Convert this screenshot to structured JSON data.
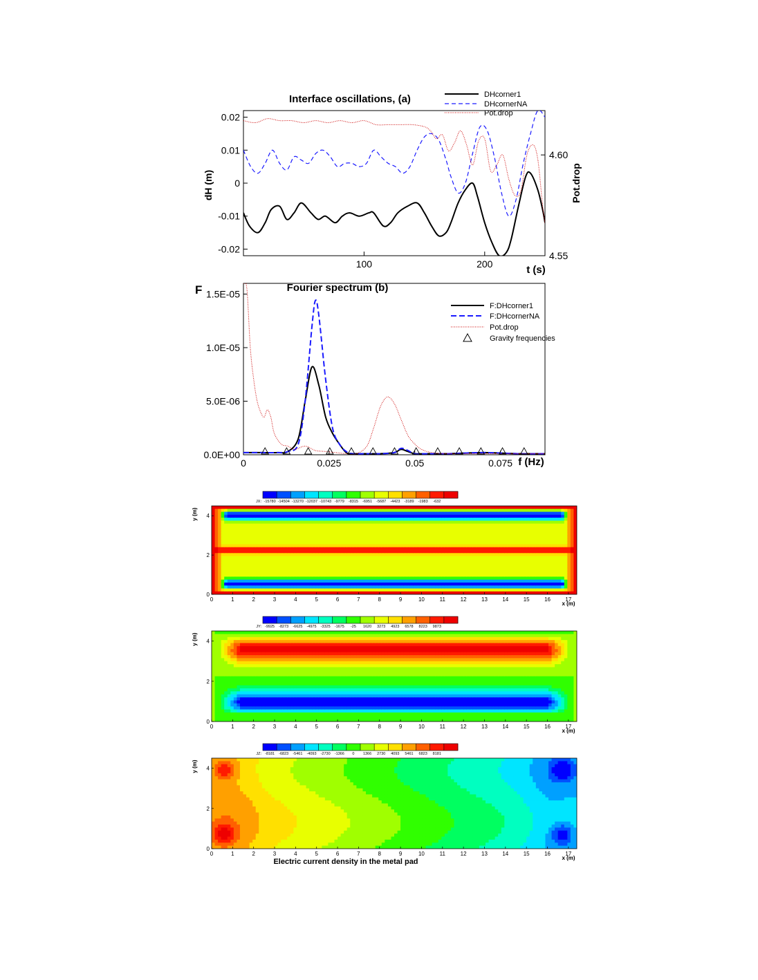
{
  "chart_data": [
    {
      "type": "line",
      "title": "Interface oscillations,  (a)",
      "xlabel": "t (s)",
      "ylabel": "dH (m)",
      "y2label": "Pot.drop",
      "xlim": [
        0,
        250
      ],
      "ylim": [
        -0.022,
        0.022
      ],
      "y2lim": [
        4.55,
        4.622
      ],
      "xticks": [
        100,
        200
      ],
      "yticks": [
        0.02,
        0.01,
        0,
        -0.01,
        -0.02
      ],
      "yticklabels": [
        "0.02",
        "0.01",
        "0",
        "-0.01",
        "-0.02"
      ],
      "y2ticks": [
        4.6,
        4.55
      ],
      "y2ticklabels": [
        "4.60",
        "4.55"
      ],
      "legend_position": "top-right",
      "series": [
        {
          "name": "DHcorner1",
          "color": "#000000",
          "axis": "left",
          "x": [
            0,
            5,
            12,
            18,
            23,
            30,
            36,
            42,
            48,
            56,
            62,
            68,
            76,
            82,
            88,
            96,
            104,
            108,
            116,
            122,
            128,
            136,
            144,
            150,
            156,
            162,
            168,
            172,
            178,
            184,
            190,
            194,
            200,
            206,
            212,
            218,
            222,
            228,
            234,
            238,
            244,
            248,
            250
          ],
          "y": [
            -0.009,
            -0.013,
            -0.015,
            -0.012,
            -0.008,
            -0.007,
            -0.011,
            -0.009,
            -0.006,
            -0.009,
            -0.011,
            -0.01,
            -0.012,
            -0.01,
            -0.009,
            -0.01,
            -0.009,
            -0.009,
            -0.013,
            -0.012,
            -0.009,
            -0.007,
            -0.006,
            -0.009,
            -0.013,
            -0.016,
            -0.015,
            -0.012,
            -0.006,
            -0.002,
            0.0,
            -0.004,
            -0.012,
            -0.018,
            -0.022,
            -0.021,
            -0.017,
            -0.007,
            0.002,
            0.003,
            -0.002,
            -0.008,
            -0.012
          ]
        },
        {
          "name": "DHcornerNA",
          "color": "#1a1aff",
          "axis": "left",
          "x": [
            0,
            6,
            12,
            18,
            24,
            30,
            36,
            42,
            48,
            54,
            60,
            66,
            72,
            78,
            84,
            90,
            96,
            102,
            108,
            114,
            120,
            126,
            132,
            138,
            144,
            150,
            156,
            162,
            168,
            172,
            178,
            184,
            190,
            196,
            202,
            208,
            214,
            220,
            226,
            232,
            238,
            244,
            250
          ],
          "y": [
            0.01,
            0.005,
            0.003,
            0.006,
            0.01,
            0.006,
            0.004,
            0.008,
            0.007,
            0.006,
            0.009,
            0.01,
            0.008,
            0.005,
            0.006,
            0.006,
            0.005,
            0.006,
            0.01,
            0.008,
            0.006,
            0.005,
            0.003,
            0.005,
            0.01,
            0.014,
            0.015,
            0.013,
            0.007,
            0.002,
            -0.003,
            0.0,
            0.009,
            0.017,
            0.016,
            0.008,
            -0.003,
            -0.01,
            -0.005,
            0.006,
            0.015,
            0.022,
            0.02
          ]
        },
        {
          "name": "Pot.drop",
          "color": "#cc0000",
          "axis": "right",
          "x": [
            0,
            10,
            20,
            30,
            40,
            50,
            60,
            70,
            80,
            90,
            100,
            110,
            120,
            130,
            140,
            150,
            155,
            160,
            165,
            170,
            175,
            180,
            185,
            190,
            195,
            200,
            205,
            210,
            215,
            220,
            225,
            230,
            235,
            240,
            244,
            248,
            250
          ],
          "y": [
            4.617,
            4.616,
            4.618,
            4.617,
            4.617,
            4.616,
            4.617,
            4.616,
            4.617,
            4.616,
            4.617,
            4.615,
            4.615,
            4.615,
            4.615,
            4.614,
            4.612,
            4.608,
            4.61,
            4.602,
            4.606,
            4.612,
            4.605,
            4.595,
            4.607,
            4.608,
            4.592,
            4.595,
            4.6,
            4.588,
            4.58,
            4.582,
            4.6,
            4.605,
            4.598,
            4.575,
            4.566
          ]
        }
      ]
    },
    {
      "type": "line",
      "title": "Fourier spectrum (b)",
      "xlabel": "f (Hz)",
      "ylabel": "F",
      "xlim": [
        0,
        0.088
      ],
      "ylim": [
        0,
        1.6e-05
      ],
      "xticks": [
        0,
        0.025,
        0.05,
        0.075
      ],
      "xticklabels": [
        "0",
        "0.025",
        "0.05",
        "0.075"
      ],
      "yticks": [
        0,
        5e-06,
        1e-05,
        1.5e-05
      ],
      "yticklabels": [
        "0.0E+00",
        "5.0E-06",
        "1.0E-05",
        "1.5E-05"
      ],
      "legend_position": "top-right",
      "series": [
        {
          "name": "F:DHcorner1",
          "color": "#000000",
          "x": [
            0,
            0.005,
            0.01,
            0.013,
            0.016,
            0.018,
            0.02,
            0.022,
            0.024,
            0.026,
            0.028,
            0.03,
            0.032,
            0.036,
            0.04,
            0.044,
            0.046,
            0.048,
            0.05,
            0.054,
            0.06,
            0.07,
            0.08,
            0.088
          ],
          "y": [
            2e-07,
            2e-07,
            2e-07,
            3e-07,
            1.5e-06,
            5e-06,
            8.2e-06,
            6.5e-06,
            3.5e-06,
            2e-06,
            1e-06,
            2e-07,
            1e-07,
            1e-07,
            1e-07,
            2e-07,
            5e-07,
            3e-07,
            1e-07,
            1e-07,
            1e-07,
            2e-07,
            1e-07,
            1e-07
          ]
        },
        {
          "name": "F:DHcornerNA",
          "color": "#1a1aff",
          "x": [
            0,
            0.005,
            0.01,
            0.013,
            0.016,
            0.018,
            0.02,
            0.021,
            0.022,
            0.024,
            0.026,
            0.028,
            0.03,
            0.032,
            0.036,
            0.04,
            0.044,
            0.046,
            0.048,
            0.05,
            0.054,
            0.06,
            0.07,
            0.08,
            0.088
          ],
          "y": [
            2e-07,
            2e-07,
            2e-07,
            3e-07,
            1e-06,
            5e-06,
            1.2e-05,
            1.44e-05,
            1.3e-05,
            7e-06,
            2.5e-06,
            1e-06,
            3e-07,
            1e-07,
            1e-07,
            1e-07,
            2e-07,
            6e-07,
            4e-07,
            1e-07,
            1e-07,
            1e-07,
            2e-07,
            1e-07,
            1e-07
          ]
        },
        {
          "name": "Pot.drop",
          "color": "#cc0000",
          "x": [
            0,
            0.001,
            0.002,
            0.003,
            0.004,
            0.005,
            0.006,
            0.007,
            0.008,
            0.009,
            0.011,
            0.013,
            0.015,
            0.018,
            0.021,
            0.024,
            0.027,
            0.03,
            0.033,
            0.036,
            0.038,
            0.04,
            0.042,
            0.044,
            0.046,
            0.048,
            0.05,
            0.052,
            0.055,
            0.06,
            0.07,
            0.08,
            0.088
          ],
          "y": [
            1.6e-05,
            1.55e-05,
            1e-05,
            7e-06,
            5e-06,
            4e-06,
            3.5e-06,
            4.2e-06,
            3.5e-06,
            2e-06,
            1e-06,
            8e-07,
            5e-07,
            8e-07,
            4e-07,
            3e-07,
            2e-07,
            1e-07,
            1e-07,
            8e-07,
            2.5e-06,
            4.5e-06,
            5.4e-06,
            4.8e-06,
            3.3e-06,
            1.8e-06,
            1e-06,
            5e-07,
            2e-07,
            1e-07,
            1e-07,
            1e-07,
            1e-07
          ]
        },
        {
          "name": "Gravity frequencies",
          "color": "#000000",
          "marker": "triangle",
          "x": [
            0.0063,
            0.0126,
            0.0189,
            0.0252,
            0.0315,
            0.0378,
            0.0441,
            0.0504,
            0.0567,
            0.063,
            0.0693,
            0.0756,
            0.0819
          ],
          "y": [
            2e-07,
            2e-07,
            2e-07,
            2e-07,
            2e-07,
            2e-07,
            2e-07,
            2e-07,
            2e-07,
            2e-07,
            2e-07,
            2e-07,
            2e-07
          ]
        }
      ]
    },
    {
      "type": "heatmap",
      "field": "JX",
      "xlabel": "x (m)",
      "ylabel": "y (m)",
      "xlim": [
        0,
        17.4
      ],
      "ylim": [
        0,
        4.5
      ],
      "xticks": [
        0,
        1,
        2,
        3,
        4,
        5,
        6,
        7,
        8,
        9,
        10,
        11,
        12,
        13,
        14,
        15,
        16,
        17
      ],
      "yticks": [
        0,
        2,
        4
      ],
      "colorbar_prefix": "JX:",
      "colorbar_labels": [
        "-15780",
        "-14504",
        "-13270",
        "-12037",
        "-10743",
        "-9779",
        "-8315",
        "-6951",
        "-5687",
        "-4423",
        "-3189",
        "-1983",
        "-632"
      ],
      "min": -15780,
      "max": -632
    },
    {
      "type": "heatmap",
      "field": "JY",
      "xlabel": "x (m)",
      "ylabel": "y (m)",
      "xlim": [
        0,
        17.4
      ],
      "ylim": [
        0,
        4.5
      ],
      "xticks": [
        0,
        1,
        2,
        3,
        4,
        5,
        6,
        7,
        8,
        9,
        10,
        11,
        12,
        13,
        14,
        15,
        16,
        17
      ],
      "yticks": [
        0,
        2,
        4
      ],
      "colorbar_prefix": "JY:",
      "colorbar_labels": [
        "-9925",
        "-8273",
        "-6625",
        "-4975",
        "-3325",
        "-1675",
        "-25",
        "1620",
        "3273",
        "4923",
        "6578",
        "8223",
        "9873"
      ],
      "min": -9925,
      "max": 9873
    },
    {
      "type": "heatmap",
      "field": "JZ",
      "title": "Electric current density in the metal pad",
      "xlabel": "x (m)",
      "ylabel": "y (m)",
      "xlim": [
        0,
        17.4
      ],
      "ylim": [
        0,
        4.5
      ],
      "xticks": [
        0,
        1,
        2,
        3,
        4,
        5,
        6,
        7,
        8,
        9,
        10,
        11,
        12,
        13,
        14,
        15,
        16,
        17
      ],
      "yticks": [
        0,
        2,
        4
      ],
      "colorbar_prefix": "JZ:",
      "colorbar_labels": [
        "-8181",
        "-6823",
        "-5461",
        "-4093",
        "-2730",
        "-1366",
        "0",
        "1366",
        "2730",
        "4093",
        "5461",
        "6823",
        "8181"
      ],
      "min": -8181,
      "max": 8181
    }
  ],
  "colormap": [
    "#0000ff",
    "#0050ff",
    "#00a0ff",
    "#00e5ff",
    "#00ffc0",
    "#00ff60",
    "#30ff00",
    "#a0ff00",
    "#e8ff00",
    "#ffe000",
    "#ffa000",
    "#ff6000",
    "#ff1a00",
    "#ee0000"
  ]
}
